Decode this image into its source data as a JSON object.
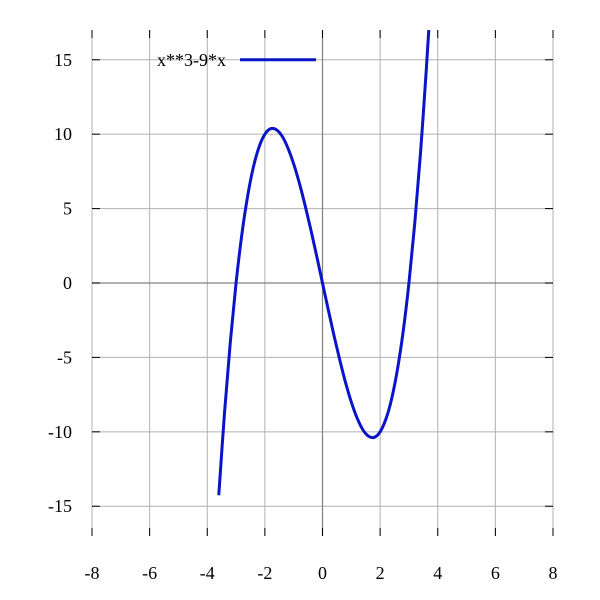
{
  "chart_data": {
    "type": "line",
    "title": "",
    "xlabel": "",
    "ylabel": "",
    "xlim": [
      -8,
      8
    ],
    "ylim": [
      -17,
      17
    ],
    "x_ticks": [
      -8,
      -6,
      -4,
      -2,
      0,
      2,
      4,
      6,
      8
    ],
    "y_ticks": [
      -15,
      -10,
      -5,
      0,
      5,
      10,
      15
    ],
    "x_tick_labels": [
      "-8",
      "-6",
      "-4",
      "-2",
      "0",
      "2",
      "4",
      "6",
      "8"
    ],
    "y_tick_labels": [
      "-15",
      "-10",
      "-5",
      "0",
      "5",
      "10",
      "15"
    ],
    "grid": true,
    "legend_position": "top-left",
    "series": [
      {
        "name": "x**3-9*x",
        "color": "#0a14c8",
        "x": [
          -3.6,
          -3.4,
          -3.2,
          -3.0,
          -2.8,
          -2.6,
          -2.4,
          -2.2,
          -2.0,
          -1.8,
          -1.6,
          -1.4,
          -1.2,
          -1.0,
          -0.8,
          -0.6,
          -0.4,
          -0.2,
          0.0,
          0.2,
          0.4,
          0.6,
          0.8,
          1.0,
          1.2,
          1.4,
          1.6,
          1.8,
          2.0,
          2.2,
          2.4,
          2.6,
          2.8,
          3.0,
          3.2,
          3.4,
          3.6,
          3.7
        ],
        "y": [
          -14.26,
          -8.7,
          -3.97,
          0.0,
          3.25,
          5.82,
          7.78,
          9.15,
          10.0,
          10.37,
          10.3,
          9.86,
          9.07,
          8.0,
          6.69,
          5.18,
          3.54,
          1.79,
          0.0,
          -1.79,
          -3.54,
          -5.18,
          -6.69,
          -8.0,
          -9.07,
          -9.86,
          -10.3,
          -10.37,
          -10.0,
          -9.15,
          -7.78,
          -5.82,
          -3.25,
          0.0,
          3.97,
          8.7,
          14.26,
          17.35
        ]
      }
    ]
  }
}
